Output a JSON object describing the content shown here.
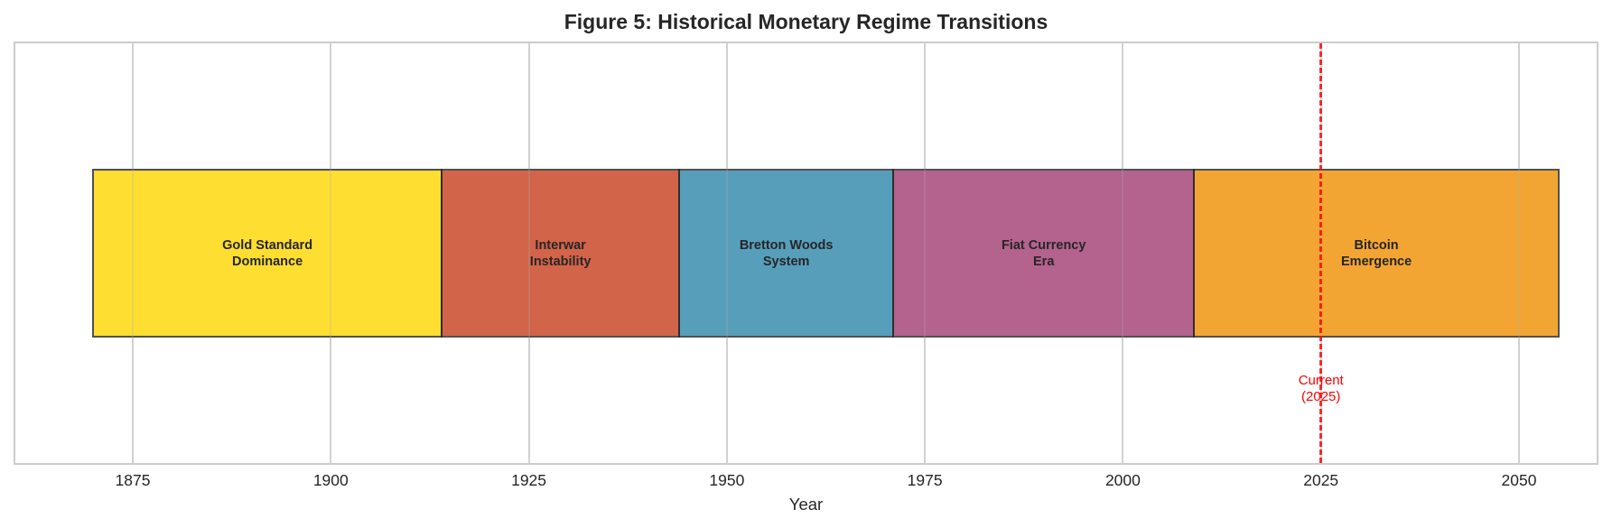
{
  "chart_data": {
    "type": "timeline",
    "title": "Figure 5: Historical Monetary Regime Transitions",
    "xlabel": "Year",
    "ylabel": "",
    "xlim": [
      1868.1,
      2064.2
    ],
    "xticks": [
      1875,
      1900,
      1925,
      1950,
      1975,
      2000,
      2025,
      2050
    ],
    "grid": true,
    "legend": null,
    "periods": [
      {
        "label": "Gold Standard\nDominance",
        "start": 1870,
        "end": 1914,
        "color": "#FFD700"
      },
      {
        "label": "Interwar\nInstability",
        "start": 1914,
        "end": 1944,
        "color": "#C73E1D"
      },
      {
        "label": "Bretton Woods\nSystem",
        "start": 1944,
        "end": 1971,
        "color": "#2E86AB"
      },
      {
        "label": "Fiat Currency\nEra",
        "start": 1971,
        "end": 2009,
        "color": "#A23B72"
      },
      {
        "label": "Bitcoin\nEmergence",
        "start": 2009,
        "end": 2055,
        "color": "#F18F01"
      }
    ],
    "annotations": [
      {
        "type": "vline",
        "x": 2025,
        "style": "dashed",
        "color": "#FF0000",
        "label": "Current\n(2025)"
      }
    ]
  },
  "title": "Figure 5: Historical Monetary Regime Transitions",
  "axis": {
    "xlabel": "Year",
    "ticks": [
      "1875",
      "1900",
      "1925",
      "1950",
      "1975",
      "2000",
      "2025",
      "2050"
    ]
  },
  "current_marker": {
    "label": "Current\n(2025)",
    "color": "#FF0000"
  }
}
